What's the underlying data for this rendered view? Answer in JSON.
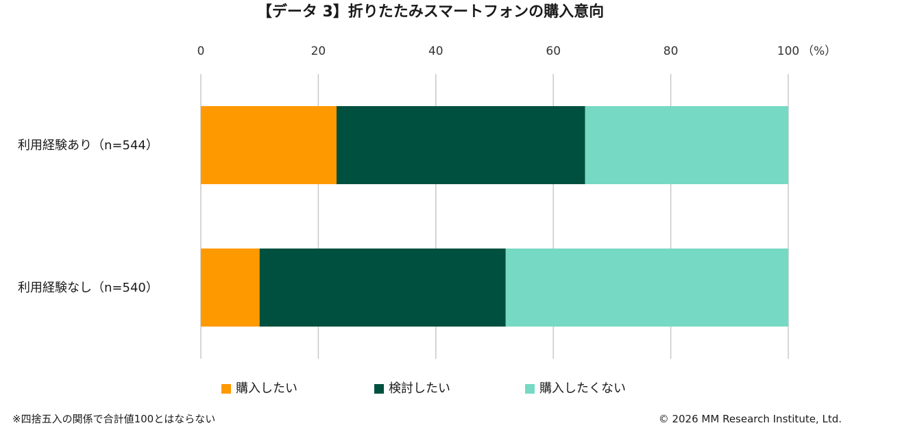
{
  "chart_data": {
    "type": "bar",
    "orientation": "horizontal",
    "stacked": true,
    "title": "【データ 3】折りたたみスマートフォンの購入意向",
    "unit": "（%）",
    "xlim": [
      0,
      100
    ],
    "xticks": [
      "0",
      "20",
      "40",
      "60",
      "80",
      "100"
    ],
    "grid": true,
    "legend_position": "bottom",
    "categories": [
      "利用経験あり（n=544）",
      "利用経験なし（n=540）"
    ],
    "series": [
      {
        "name": "購入したい",
        "color": "#FF9900",
        "values": [
          23.1,
          10.0
        ]
      },
      {
        "name": "検討したい",
        "color": "#00503F",
        "values": [
          42.3,
          41.9
        ]
      },
      {
        "name": "購入したくない",
        "color": "#76D9C3",
        "values": [
          34.6,
          48.1
        ]
      }
    ]
  },
  "footnote": "※四捨五入の関係で合計値100とはならない",
  "copyright": "© 2026 MM Research Institute, Ltd."
}
